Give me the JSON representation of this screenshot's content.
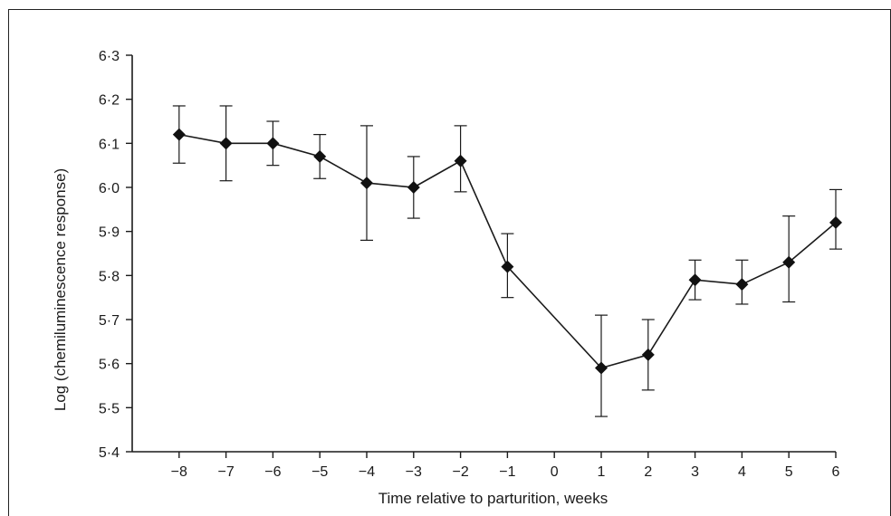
{
  "chart_data": {
    "type": "line",
    "xlabel": "Time relative to parturition, weeks",
    "ylabel": "Log (chemiluminescence response)",
    "xlim": [
      -9,
      6
    ],
    "ylim": [
      5.4,
      6.3
    ],
    "x_ticks": [
      -8,
      -7,
      -6,
      -5,
      -4,
      -3,
      -2,
      -1,
      0,
      1,
      2,
      3,
      4,
      5,
      6
    ],
    "x_tick_labels": [
      "−8",
      "−7",
      "−6",
      "−5",
      "−4",
      "−3",
      "−2",
      "−1",
      "0",
      "1",
      "2",
      "3",
      "4",
      "5",
      "6"
    ],
    "y_ticks": [
      5.4,
      5.5,
      5.6,
      5.7,
      5.8,
      5.9,
      6.0,
      6.1,
      6.2,
      6.3
    ],
    "y_tick_labels": [
      "5·4",
      "5·5",
      "5·6",
      "5·7",
      "5·8",
      "5·9",
      "6·0",
      "6·1",
      "6·2",
      "6·3"
    ],
    "grid": false,
    "marker": "diamond",
    "series": [
      {
        "x": [
          -8,
          -7,
          -6,
          -5,
          -4,
          -3,
          -2,
          -1,
          1,
          2,
          3,
          4,
          5,
          6
        ],
        "values": [
          6.12,
          6.1,
          6.1,
          6.07,
          6.01,
          6.0,
          6.06,
          5.82,
          5.59,
          5.62,
          5.79,
          5.78,
          5.83,
          5.92
        ],
        "err_low": [
          6.055,
          6.015,
          6.05,
          6.02,
          5.88,
          5.93,
          5.99,
          5.75,
          5.48,
          5.54,
          5.745,
          5.735,
          5.74,
          5.86
        ],
        "err_high": [
          6.185,
          6.185,
          6.15,
          6.12,
          6.14,
          6.07,
          6.14,
          5.895,
          5.71,
          5.7,
          5.835,
          5.835,
          5.935,
          5.995
        ]
      }
    ]
  }
}
